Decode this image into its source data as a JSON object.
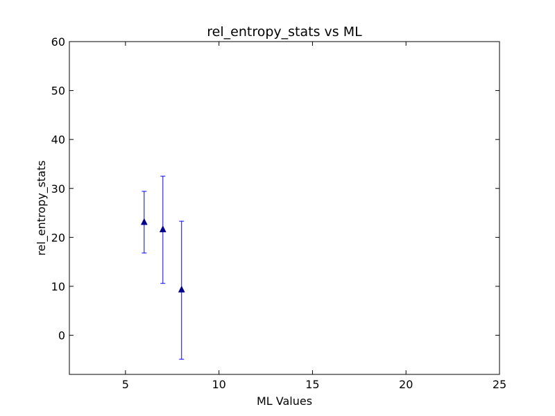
{
  "chart_data": {
    "type": "scatter",
    "title": "rel_entropy_stats vs ML",
    "xlabel": "ML Values",
    "ylabel": "rel_entropy_stats",
    "xlim": [
      2,
      25
    ],
    "ylim": [
      -8,
      60
    ],
    "xticks": [
      5,
      10,
      15,
      20,
      25
    ],
    "yticks": [
      0,
      10,
      20,
      30,
      40,
      50,
      60
    ],
    "grid": false,
    "legend": "none",
    "series": [
      {
        "marker": "triangle-up",
        "color": "#00008b",
        "errorbar_color": "#0000ff",
        "points": [
          {
            "x": 6,
            "y": 23.1,
            "yerr_low": 16.8,
            "yerr_high": 29.4
          },
          {
            "x": 7,
            "y": 21.6,
            "yerr_low": 10.6,
            "yerr_high": 32.5
          },
          {
            "x": 8,
            "y": 9.3,
            "yerr_low": -4.9,
            "yerr_high": 23.3
          }
        ]
      }
    ]
  }
}
